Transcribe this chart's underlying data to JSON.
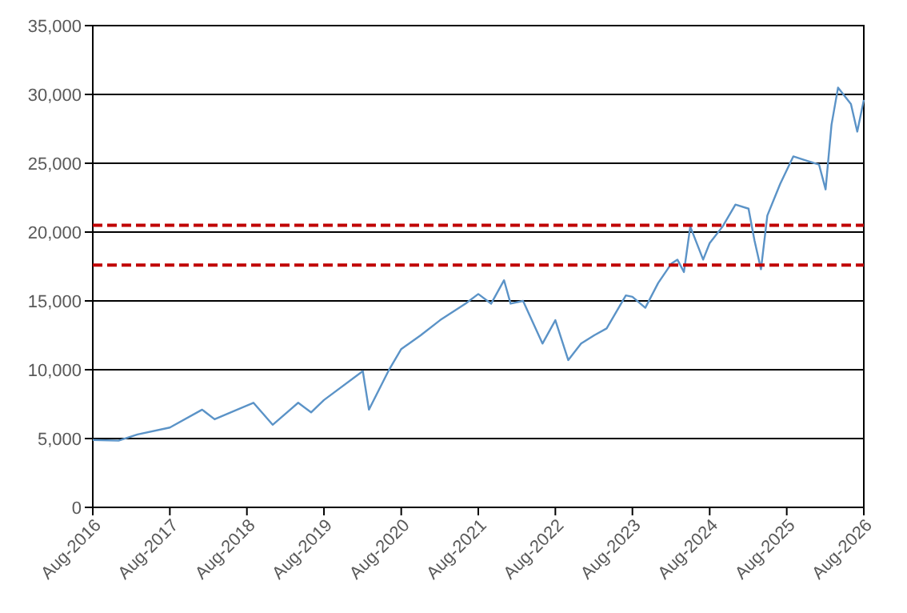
{
  "chart_data": {
    "type": "line",
    "x": [
      "2016-08",
      "2016-12",
      "2017-03",
      "2017-08",
      "2018-01",
      "2018-03",
      "2018-09",
      "2018-12",
      "2019-04",
      "2019-06",
      "2019-08",
      "2020-02",
      "2020-03",
      "2020-06",
      "2020-08",
      "2020-11",
      "2021-02",
      "2021-06",
      "2021-08",
      "2021-10",
      "2021-12",
      "2022-01",
      "2022-03",
      "2022-06",
      "2022-08",
      "2022-10",
      "2022-12",
      "2023-02",
      "2023-04",
      "2023-07",
      "2023-08",
      "2023-10",
      "2023-12",
      "2024-02",
      "2024-03",
      "2024-04",
      "2024-05",
      "2024-07",
      "2024-08",
      "2024-10",
      "2024-12",
      "2025-02",
      "2025-03",
      "2025-04",
      "2025-05",
      "2025-07",
      "2025-09",
      "2025-11",
      "2026-01",
      "2026-02",
      "2026-03",
      "2026-04",
      "2026-06",
      "2026-07",
      "2026-08"
    ],
    "series": [
      {
        "color": "#5b93c7",
        "values": [
          4900,
          4850,
          5300,
          5800,
          7100,
          6400,
          7600,
          6000,
          7600,
          6900,
          7800,
          9900,
          7100,
          9900,
          11500,
          12500,
          13600,
          14800,
          15500,
          14800,
          16500,
          14800,
          15000,
          11900,
          13600,
          10700,
          11900,
          12500,
          13000,
          15400,
          15300,
          14500,
          16300,
          17700,
          18000,
          17100,
          20400,
          18000,
          19200,
          20400,
          22000,
          21700,
          19400,
          17300,
          21200,
          23500,
          25500,
          25200,
          24900,
          23100,
          27800,
          30500,
          29300,
          27300,
          29600
        ]
      }
    ],
    "xlim": [
      "2016-08",
      "2026-08"
    ],
    "xticks": [
      {
        "value": "2016-08",
        "label": "Aug-2016"
      },
      {
        "value": "2017-08",
        "label": "Aug-2017"
      },
      {
        "value": "2018-08",
        "label": "Aug-2018"
      },
      {
        "value": "2019-08",
        "label": "Aug-2019"
      },
      {
        "value": "2020-08",
        "label": "Aug-2020"
      },
      {
        "value": "2021-08",
        "label": "Aug-2021"
      },
      {
        "value": "2022-08",
        "label": "Aug-2022"
      },
      {
        "value": "2023-08",
        "label": "Aug-2023"
      },
      {
        "value": "2024-08",
        "label": "Aug-2024"
      },
      {
        "value": "2025-08",
        "label": "Aug-2025"
      },
      {
        "value": "2026-08",
        "label": "Aug-2026"
      }
    ],
    "ylim": [
      0,
      35000
    ],
    "yticks": [
      0,
      {
        "value": 5000,
        "label": "5,000"
      },
      {
        "value": 10000,
        "label": "10,000"
      },
      {
        "value": 15000,
        "label": "15,000"
      },
      {
        "value": 20000,
        "label": "20,000"
      },
      {
        "value": 25000,
        "label": "25,000"
      },
      {
        "value": 30000,
        "label": "30,000"
      },
      {
        "value": 35000,
        "label": "35,000"
      }
    ],
    "grid": "y",
    "line_style": "solid",
    "ref_lines": [
      {
        "axis": "y",
        "value": 20500,
        "color": "#c00000",
        "line_style": "dashed"
      },
      {
        "axis": "y",
        "value": 17600,
        "color": "#c00000",
        "line_style": "dashed"
      }
    ]
  }
}
